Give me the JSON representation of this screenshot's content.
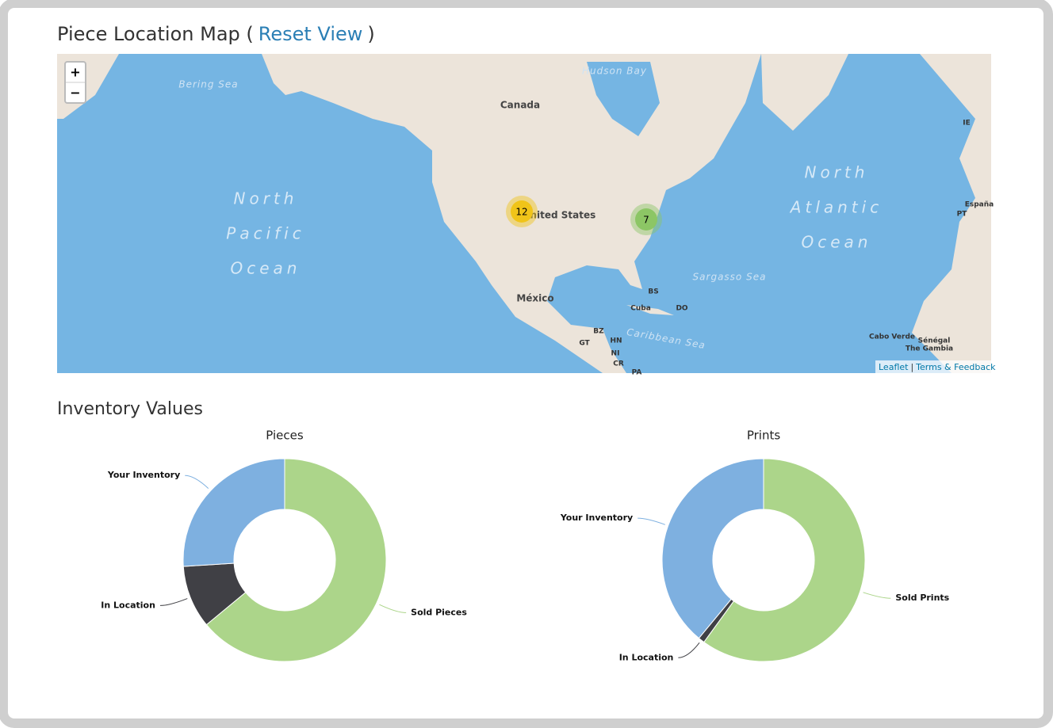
{
  "header": {
    "title": "Piece Location Map (",
    "link": "Reset View",
    "close": ")"
  },
  "map": {
    "zoom_in": "+",
    "zoom_out": "−",
    "labels": [
      "Bering Sea",
      "Canada",
      "Hudson Bay",
      "North",
      "Pacific",
      "Ocean",
      "United States",
      "North",
      "Atlantic",
      "Ocean",
      "México",
      "Sargasso Sea",
      "Caribbean Sea",
      "BS",
      "Cuba",
      "DO",
      "BZ",
      "GT",
      "HN",
      "NI",
      "CR",
      "PA",
      "IE",
      "PT",
      "España",
      "Cabo Verde",
      "Sénégal",
      "The Gambia"
    ],
    "clusters": [
      {
        "count": 12,
        "color": "#f0c419"
      },
      {
        "count": 7,
        "color": "#8cc665"
      }
    ],
    "attribution": {
      "leaflet": "Leaflet",
      "separator": "|",
      "terms": "Terms & Feedback"
    }
  },
  "section_title": "Inventory Values",
  "chart_data": [
    {
      "type": "pie",
      "title": "Pieces",
      "categories": [
        "Sold Pieces",
        "In Location",
        "Your Inventory"
      ],
      "values": [
        64,
        10,
        26
      ],
      "colors": [
        "#acd58a",
        "#404045",
        "#7eb0e0"
      ]
    },
    {
      "type": "pie",
      "title": "Prints",
      "categories": [
        "Sold Prints",
        "In Location",
        "Your Inventory"
      ],
      "values": [
        60,
        1,
        39
      ],
      "colors": [
        "#acd58a",
        "#404045",
        "#7eb0e0"
      ]
    }
  ]
}
